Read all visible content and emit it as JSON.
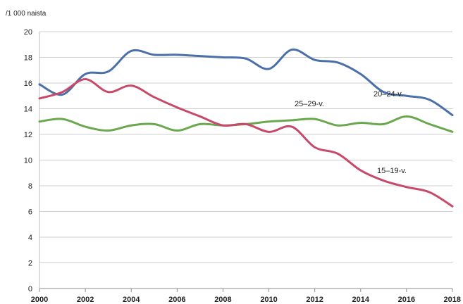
{
  "chart_data": {
    "type": "line",
    "unit_label": "/1 000 naista",
    "x": [
      2000,
      2001,
      2002,
      2003,
      2004,
      2005,
      2006,
      2007,
      2008,
      2009,
      2010,
      2011,
      2012,
      2013,
      2014,
      2015,
      2016,
      2017,
      2018
    ],
    "x_ticks": [
      "2000",
      "2002",
      "2004",
      "2006",
      "2008",
      "2010",
      "2012",
      "2014",
      "2016",
      "2018"
    ],
    "y_ticks": [
      "0",
      "2",
      "4",
      "6",
      "8",
      "10",
      "12",
      "14",
      "16",
      "18",
      "20"
    ],
    "ylim": [
      0,
      20
    ],
    "xlim": [
      2000,
      2018
    ],
    "grid": true,
    "series": [
      {
        "name": "20–24-v.",
        "color": "#4a6fa9",
        "values": [
          15.9,
          15.1,
          16.7,
          16.9,
          18.5,
          18.2,
          18.2,
          18.1,
          18.0,
          17.9,
          17.1,
          18.6,
          17.8,
          17.6,
          16.7,
          15.3,
          15.0,
          14.7,
          13.5
        ]
      },
      {
        "name": "25–29-v.",
        "color": "#6aa84f",
        "values": [
          13.0,
          13.2,
          12.6,
          12.3,
          12.7,
          12.8,
          12.3,
          12.8,
          12.7,
          12.8,
          13.0,
          13.1,
          13.2,
          12.7,
          12.9,
          12.8,
          13.4,
          12.8,
          12.2
        ]
      },
      {
        "name": "15–19-v.",
        "color": "#c74a6a",
        "values": [
          14.8,
          15.3,
          16.3,
          15.3,
          15.8,
          14.9,
          14.1,
          13.4,
          12.7,
          12.8,
          12.2,
          12.6,
          11.0,
          10.5,
          9.2,
          8.4,
          7.9,
          7.5,
          6.4
        ]
      }
    ]
  }
}
